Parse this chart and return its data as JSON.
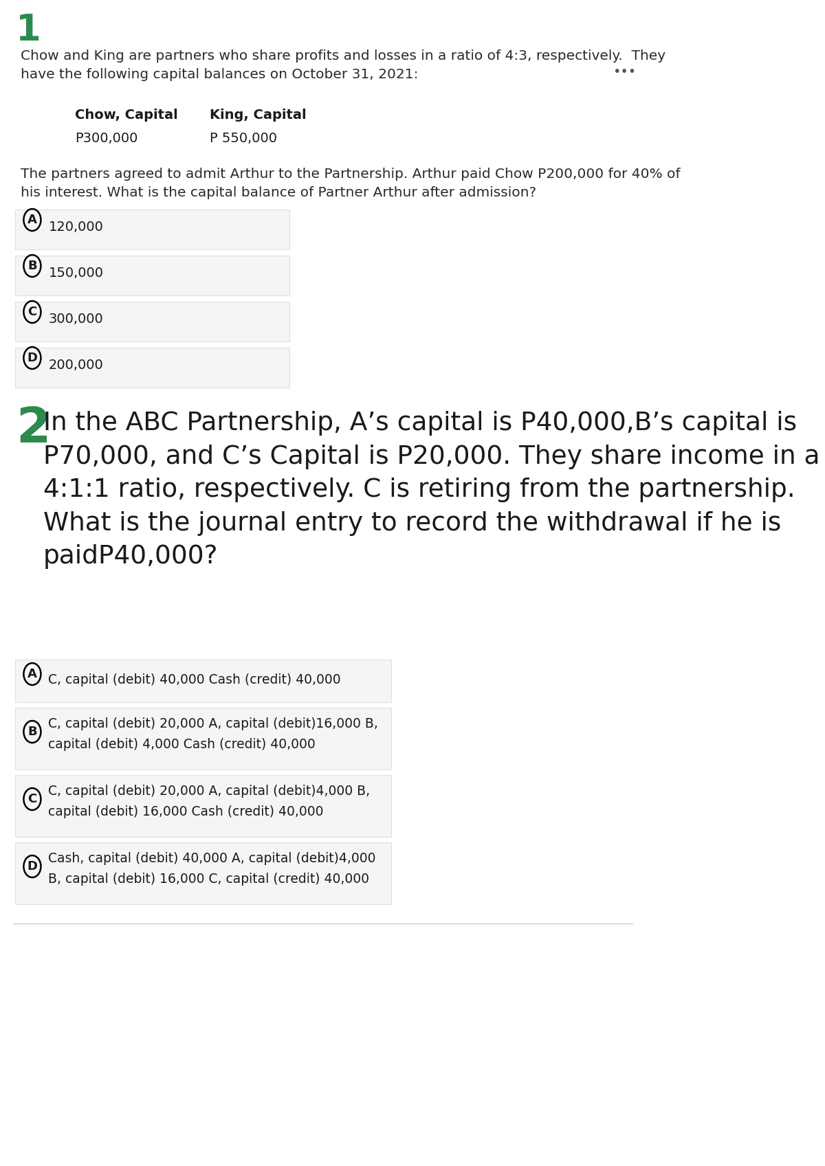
{
  "bg_color": "#ffffff",
  "q1_number": "1",
  "q1_number_color": "#2d8a4e",
  "q1_body": "Chow and King are partners who share profits and losses in a ratio of 4:3, respectively.  They\nhave the following capital balances on October 31, 2021:",
  "q1_dots": "•••",
  "q1_table_col1_header": "Chow, Capital",
  "q1_table_col2_header": "King, Capital",
  "q1_table_col1_val": "P300,000",
  "q1_table_col2_val": "P 550,000",
  "q1_question": "The partners agreed to admit Arthur to the Partnership. Arthur paid Chow P200,000 for 40% of\nhis interest. What is the capital balance of Partner Arthur after admission?",
  "q1_options": [
    {
      "letter": "A",
      "text": "120,000"
    },
    {
      "letter": "B",
      "text": "150,000"
    },
    {
      "letter": "C",
      "text": "300,000"
    },
    {
      "letter": "D",
      "text": "200,000"
    }
  ],
  "q2_number": "2",
  "q2_number_color": "#2d8a4e",
  "q2_body": "In the ABC Partnership, A’s capital is P40,000,B’s capital is\nP70,000, and C’s Capital is P20,000. They share income in a\n4:1:1 ratio, respectively. C is retiring from the partnership.\nWhat is the journal entry to record the withdrawal if he is\npaidP40,000?",
  "q2_options": [
    {
      "letter": "A",
      "text": "C, capital (debit) 40,000 Cash (credit) 40,000",
      "multiline": false
    },
    {
      "letter": "B",
      "text": "C, capital (debit) 20,000 A, capital (debit)16,000 B,\ncapital (debit) 4,000 Cash (credit) 40,000",
      "multiline": true
    },
    {
      "letter": "C",
      "text": "C, capital (debit) 20,000 A, capital (debit)4,000 B,\ncapital (debit) 16,000 Cash (credit) 40,000",
      "multiline": true
    },
    {
      "letter": "D",
      "text": "Cash, capital (debit) 40,000 A, capital (debit)4,000\nB, capital (debit) 16,000 C, capital (credit) 40,000",
      "multiline": true
    }
  ],
  "option_bg": "#f5f5f5",
  "option_border": "#e0e0e0",
  "circle_color": "#000000",
  "text_color": "#1a1a1a",
  "body_text_color": "#2a2a2a"
}
